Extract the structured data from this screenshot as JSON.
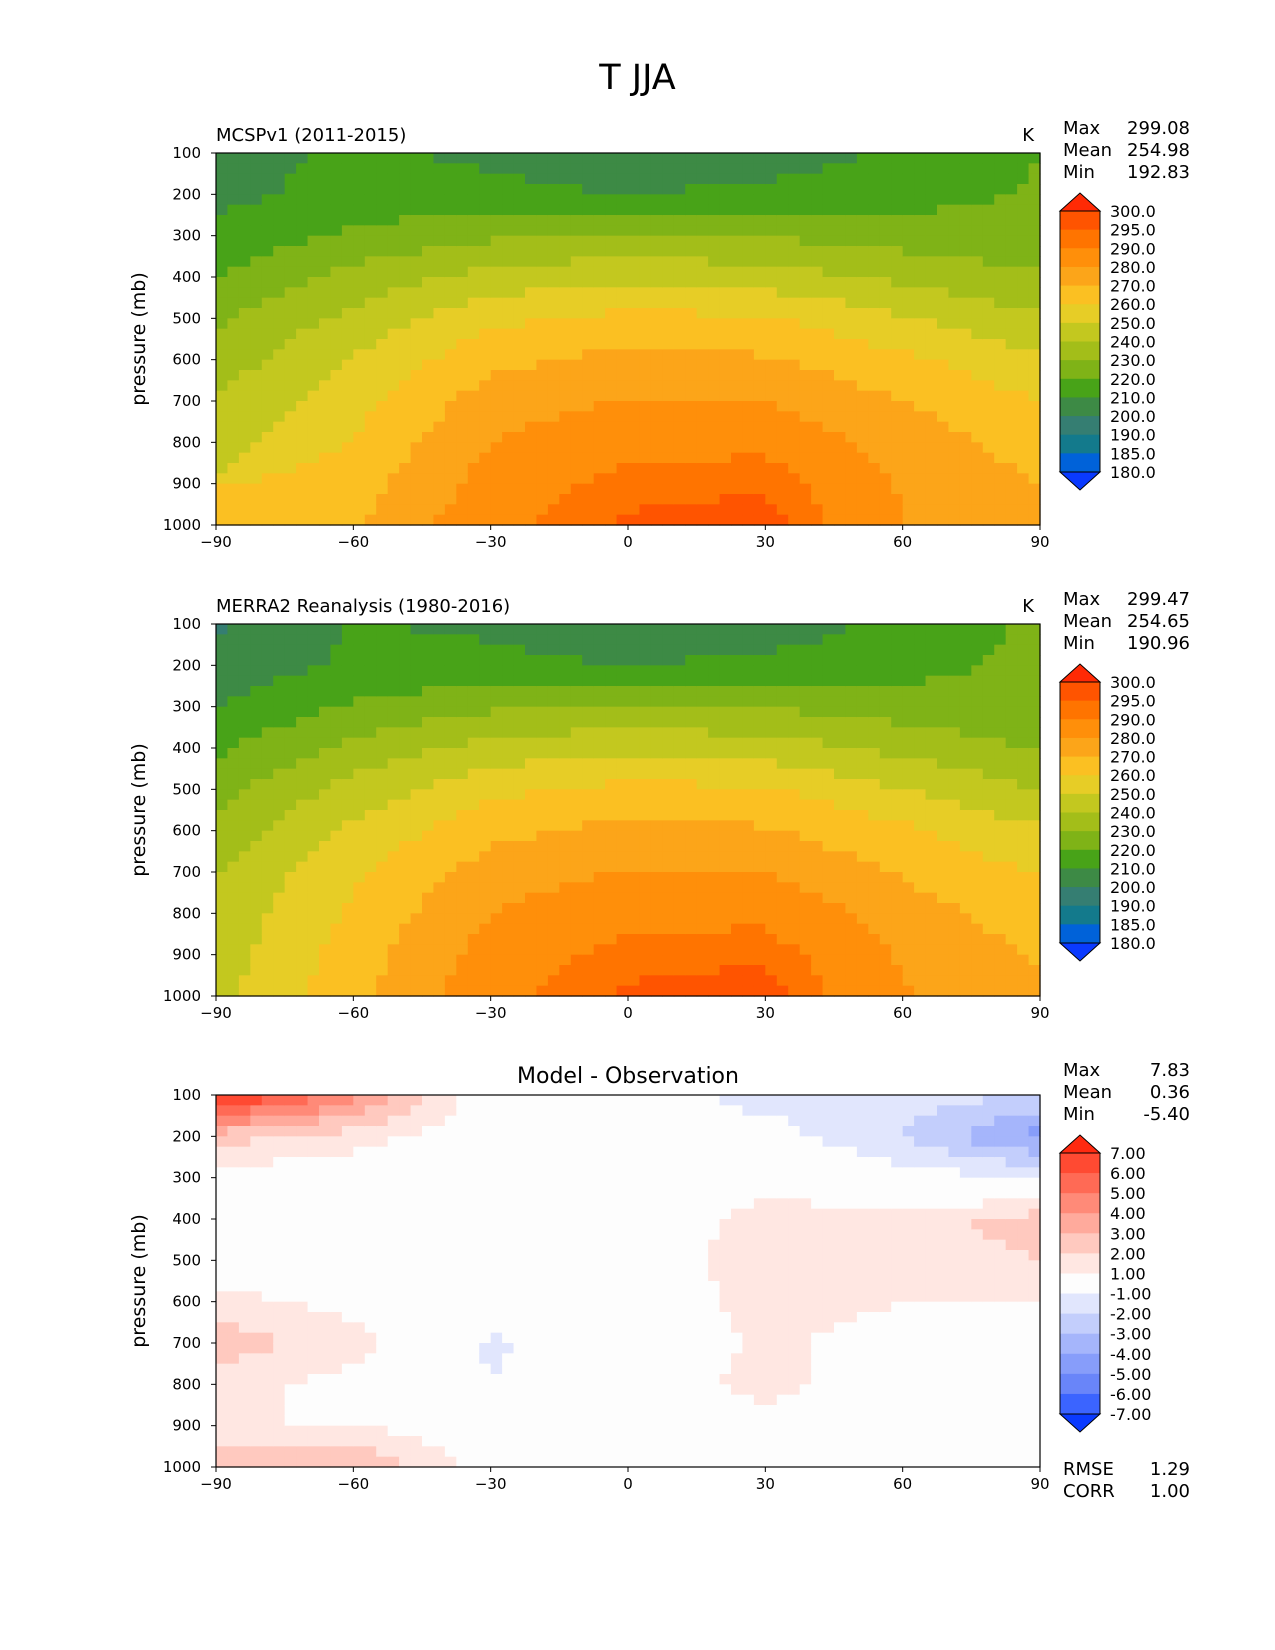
{
  "page_title": "T JJA",
  "chart_data": [
    {
      "type": "heatmap",
      "title": "MCSPv1 (2011-2015)",
      "units": "K",
      "ylabel": "pressure (mb)",
      "x_ticks": [
        "−90",
        "−60",
        "−30",
        "0",
        "30",
        "60",
        "90"
      ],
      "y_ticks": [
        "100",
        "200",
        "300",
        "400",
        "500",
        "600",
        "700",
        "800",
        "900",
        "1000"
      ],
      "xlim": [
        -90,
        90
      ],
      "ylim": [
        1000,
        100
      ],
      "stats": [
        {
          "label": "Max",
          "value": "299.08"
        },
        {
          "label": "Mean",
          "value": "254.98"
        },
        {
          "label": "Min",
          "value": "192.83"
        }
      ],
      "colorbar_levels": [
        "300.0",
        "295.0",
        "290.0",
        "280.0",
        "270.0",
        "260.0",
        "250.0",
        "240.0",
        "230.0",
        "220.0",
        "210.0",
        "200.0",
        "190.0",
        "185.0",
        "180.0"
      ],
      "colorbar_colors": [
        "#ff2a05",
        "#ff5400",
        "#ff7400",
        "#ff8f0a",
        "#fca519",
        "#fbc022",
        "#e7cd26",
        "#c3c81f",
        "#a3be19",
        "#7fb317",
        "#48a318",
        "#3d8a45",
        "#357e72",
        "#137a8c",
        "#0062d9",
        "#0a3aff"
      ],
      "data": {
        "lat": [
          -90,
          -60,
          -30,
          0,
          30,
          60,
          90
        ],
        "pressure": [
          100,
          200,
          300,
          400,
          500,
          600,
          700,
          800,
          900,
          1000
        ],
        "T": [
          [
            205,
            212,
            208,
            199,
            204,
            212,
            220
          ],
          [
            207,
            214,
            213,
            210,
            213,
            216,
            221
          ],
          [
            213,
            222,
            228,
            231,
            229,
            225,
            223
          ],
          [
            220,
            233,
            244,
            248,
            245,
            238,
            231
          ],
          [
            228,
            243,
            257,
            263,
            261,
            251,
            241
          ],
          [
            234,
            251,
            267,
            273,
            271,
            262,
            252
          ],
          [
            241,
            256,
            275,
            281,
            280,
            270,
            260
          ],
          [
            245,
            261,
            280,
            287,
            288,
            276,
            265
          ],
          [
            null,
            265,
            284,
            293,
            294,
            279,
            270
          ],
          [
            null,
            268,
            288,
            296,
            298,
            280,
            273
          ]
        ]
      }
    },
    {
      "type": "heatmap",
      "title": "MERRA2 Reanalysis (1980-2016)",
      "units": "K",
      "ylabel": "pressure (mb)",
      "x_ticks": [
        "−90",
        "−60",
        "−30",
        "0",
        "30",
        "60",
        "90"
      ],
      "y_ticks": [
        "100",
        "200",
        "300",
        "400",
        "500",
        "600",
        "700",
        "800",
        "900",
        "1000"
      ],
      "xlim": [
        -90,
        90
      ],
      "ylim": [
        1000,
        100
      ],
      "stats": [
        {
          "label": "Max",
          "value": "299.47"
        },
        {
          "label": "Mean",
          "value": "254.65"
        },
        {
          "label": "Min",
          "value": "190.96"
        }
      ],
      "colorbar_levels": [
        "300.0",
        "295.0",
        "290.0",
        "280.0",
        "270.0",
        "260.0",
        "250.0",
        "240.0",
        "230.0",
        "220.0",
        "210.0",
        "200.0",
        "190.0",
        "185.0",
        "180.0"
      ],
      "colorbar_colors": [
        "#ff2a05",
        "#ff5400",
        "#ff7400",
        "#ff8f0a",
        "#fca519",
        "#fbc022",
        "#e7cd26",
        "#c3c81f",
        "#a3be19",
        "#7fb317",
        "#48a318",
        "#3d8a45",
        "#357e72",
        "#137a8c",
        "#0062d9",
        "#0a3aff"
      ],
      "data": {
        "lat": [
          -90,
          -60,
          -30,
          0,
          30,
          60,
          90
        ],
        "pressure": [
          100,
          200,
          300,
          400,
          500,
          600,
          700,
          800,
          900,
          1000
        ],
        "T": [
          [
            198,
            211,
            208,
            199,
            204,
            213,
            222
          ],
          [
            203,
            212,
            213,
            210,
            213,
            216,
            223
          ],
          [
            210,
            221,
            228,
            231,
            229,
            225,
            222
          ],
          [
            218,
            233,
            244,
            248,
            245,
            237,
            229
          ],
          [
            227,
            244,
            257,
            263,
            261,
            250,
            240
          ],
          [
            233,
            252,
            267,
            273,
            271,
            262,
            251
          ],
          [
            240,
            258,
            275,
            281,
            280,
            269,
            259
          ],
          [
            243,
            262,
            280,
            287,
            288,
            275,
            264
          ],
          [
            245,
            265,
            284,
            293,
            294,
            279,
            269
          ],
          [
            247,
            267,
            288,
            296,
            298,
            281,
            272
          ]
        ]
      }
    },
    {
      "type": "heatmap",
      "title": "Model - Observation",
      "units": "",
      "ylabel": "pressure (mb)",
      "x_ticks": [
        "−90",
        "−60",
        "−30",
        "0",
        "30",
        "60",
        "90"
      ],
      "y_ticks": [
        "100",
        "200",
        "300",
        "400",
        "500",
        "600",
        "700",
        "800",
        "900",
        "1000"
      ],
      "xlim": [
        -90,
        90
      ],
      "ylim": [
        1000,
        100
      ],
      "stats": [
        {
          "label": "Max",
          "value": "7.83"
        },
        {
          "label": "Mean",
          "value": "0.36"
        },
        {
          "label": "Min",
          "value": "-5.40"
        }
      ],
      "extra_stats": [
        {
          "label": "RMSE",
          "value": "1.29"
        },
        {
          "label": "CORR",
          "value": "1.00"
        }
      ],
      "colorbar_levels": [
        "7.00",
        "6.00",
        "5.00",
        "4.00",
        "3.00",
        "2.00",
        "1.00",
        "-1.00",
        "-2.00",
        "-3.00",
        "-4.00",
        "-5.00",
        "-6.00",
        "-7.00"
      ],
      "colorbar_colors": [
        "#ff2a10",
        "#ff4a32",
        "#ff6a55",
        "#ff8a78",
        "#ffaa9c",
        "#ffc9bf",
        "#ffe7e2",
        "#fdfdfd",
        "#e1e6fd",
        "#c3cefc",
        "#a5b5fb",
        "#879dfa",
        "#6985f9",
        "#3b64ff",
        "#0a3aff"
      ],
      "data": {
        "lat": [
          -90,
          -60,
          -30,
          0,
          30,
          60,
          90
        ],
        "pressure": [
          100,
          200,
          300,
          400,
          500,
          600,
          700,
          800,
          900,
          1000
        ],
        "dT": [
          [
            7.5,
            4.5,
            0.2,
            -0.3,
            -1.5,
            -1.5,
            -2.0
          ],
          [
            2.5,
            1.5,
            0.0,
            0.0,
            -0.5,
            -2.0,
            -4.5
          ],
          [
            0.5,
            0.2,
            0.0,
            0.0,
            0.5,
            -0.5,
            -1.0
          ],
          [
            0.0,
            0.0,
            0.0,
            0.0,
            1.5,
            1.5,
            2.5
          ],
          [
            0.0,
            0.0,
            0.0,
            0.3,
            1.5,
            1.5,
            2.0
          ],
          [
            1.5,
            0.5,
            0.0,
            0.0,
            1.5,
            1.0,
            1.0
          ],
          [
            2.5,
            1.5,
            -1.2,
            0.0,
            1.2,
            0.5,
            0.0
          ],
          [
            1.5,
            0.5,
            -1.0,
            0.0,
            1.5,
            0.0,
            0.0
          ],
          [
            null,
            1.0,
            0.0,
            0.0,
            0.5,
            0.0,
            0.0
          ],
          [
            null,
            3.0,
            0.5,
            0.0,
            0.0,
            0.0,
            0.0
          ]
        ]
      }
    }
  ]
}
